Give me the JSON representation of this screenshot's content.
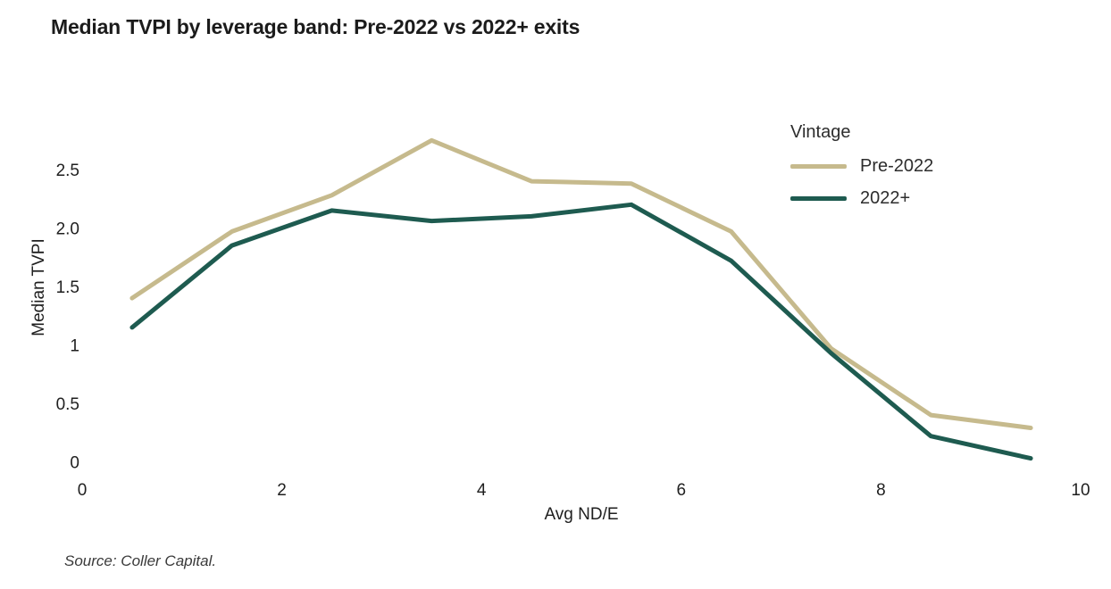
{
  "title": "Median TVPI by leverage band: Pre-2022 vs 2022+ exits",
  "source": "Source: Coller Capital.",
  "legend": {
    "title": "Vintage",
    "items": [
      {
        "label": "Pre-2022",
        "color": "#c6ba8d"
      },
      {
        "label": "2022+",
        "color": "#1e5b50"
      }
    ]
  },
  "chart_data": {
    "type": "line",
    "title": "Median TVPI by leverage band: Pre-2022 vs 2022+ exits",
    "xlabel": "Avg ND/E",
    "ylabel": "Median TVPI",
    "xlim": [
      0,
      10
    ],
    "ylim": [
      0,
      2.9
    ],
    "grid": false,
    "legend_position": "top-right",
    "x_ticks": [
      "0",
      "2",
      "4",
      "6",
      "8",
      "10"
    ],
    "y_ticks": [
      "0",
      "0.5",
      "1",
      "1.5",
      "2.0",
      "2.5"
    ],
    "x": [
      0.5,
      1.5,
      2.5,
      3.5,
      4.5,
      5.5,
      6.5,
      7.5,
      8.5,
      9.5
    ],
    "series": [
      {
        "name": "Pre-2022",
        "color": "#c6ba8d",
        "values": [
          1.4,
          1.97,
          2.28,
          2.75,
          2.4,
          2.38,
          1.97,
          0.97,
          0.4,
          0.29
        ]
      },
      {
        "name": "2022+",
        "color": "#1e5b50",
        "values": [
          1.15,
          1.85,
          2.15,
          2.06,
          2.1,
          2.2,
          1.72,
          0.93,
          0.22,
          0.03
        ]
      }
    ]
  }
}
